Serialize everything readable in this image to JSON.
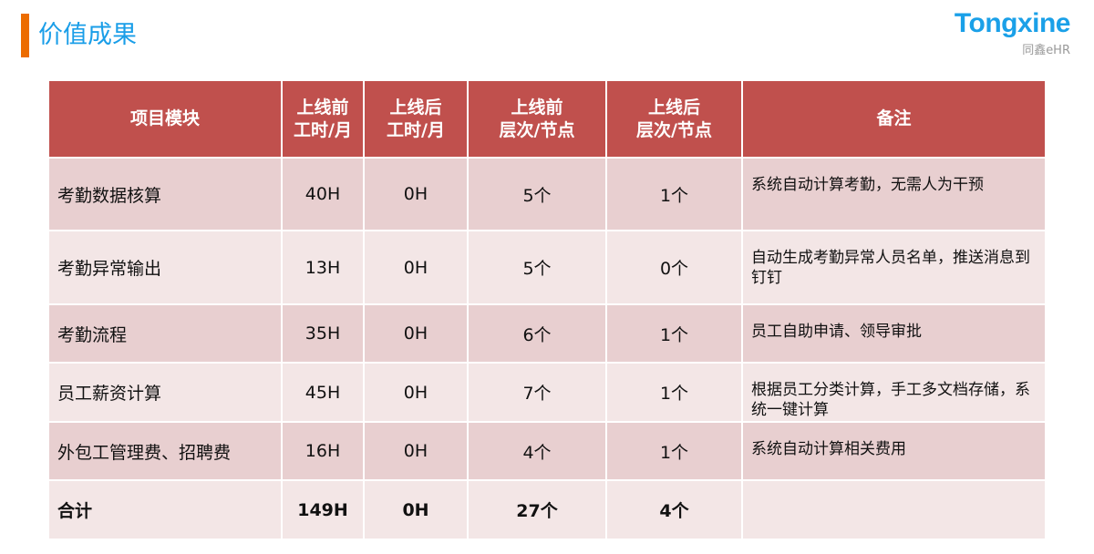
{
  "title": "价值成果",
  "logo": {
    "brand": "Tongxine",
    "sub": "同鑫eHR"
  },
  "colors": {
    "accent": "#ec6c00",
    "title": "#1a9ee8",
    "header": "#c0504d",
    "row_dark": "#e8cfd0",
    "row_light": "#f3e6e6"
  },
  "table": {
    "headers": [
      [
        "项目模块"
      ],
      [
        "上线前",
        "工时/月"
      ],
      [
        "上线后",
        "工时/月"
      ],
      [
        "上线前",
        "层次/节点"
      ],
      [
        "上线后",
        "层次/节点"
      ],
      [
        "备注"
      ]
    ],
    "rows": [
      [
        "考勤数据核算",
        "40H",
        "0H",
        "5个",
        "1个",
        "系统自动计算考勤，无需人为干预"
      ],
      [
        "考勤异常输出",
        "13H",
        "0H",
        "5个",
        "0个",
        "自动生成考勤异常人员名单，推送消息到钉钉"
      ],
      [
        "考勤流程",
        "35H",
        "0H",
        "6个",
        "1个",
        "员工自助申请、领导审批"
      ],
      [
        "员工薪资计算",
        "45H",
        "0H",
        "7个",
        "1个",
        "根据员工分类计算，手工多文档存储，系统一键计算"
      ],
      [
        "外包工管理费、招聘费",
        "16H",
        "0H",
        "4个",
        "1个",
        "系统自动计算相关费用"
      ],
      [
        "合计",
        "149H",
        "0H",
        "27个",
        "4个",
        ""
      ]
    ]
  }
}
